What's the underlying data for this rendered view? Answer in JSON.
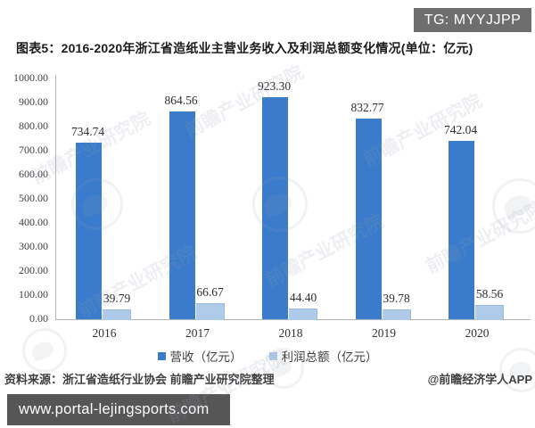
{
  "badge": {
    "text": "TG: MYYJJPP"
  },
  "title": "图表5：2016-2020年浙江省造纸业主营业务收入及利润总额变化情况(单位：亿元)",
  "chart_data": {
    "type": "bar",
    "categories": [
      "2016",
      "2017",
      "2018",
      "2019",
      "2020"
    ],
    "series": [
      {
        "name": "营收（亿元）",
        "color": "#3a7ccb",
        "values": [
          734.74,
          864.56,
          923.3,
          832.77,
          742.04
        ]
      },
      {
        "name": "利润总额（亿元）",
        "color": "#aecbea",
        "values": [
          39.79,
          66.67,
          44.4,
          39.78,
          58.56
        ]
      }
    ],
    "ylabel": "",
    "xlabel": "",
    "ylim": [
      0,
      1000
    ],
    "ytick_step": 100,
    "ytick_decimals": 2,
    "value_label_decimals": 2,
    "grid": false,
    "legend_position": "bottom"
  },
  "watermark": {
    "text": "前瞻产业研究院",
    "logo": "qianzhan-circle-logo"
  },
  "footer": {
    "source": "资料来源：浙江省造纸行业协会 前瞻产业研究院整理",
    "credit": "@前瞻经济学人APP"
  },
  "bottom_bar": {
    "url": "www.portal-lejingsports.com"
  }
}
